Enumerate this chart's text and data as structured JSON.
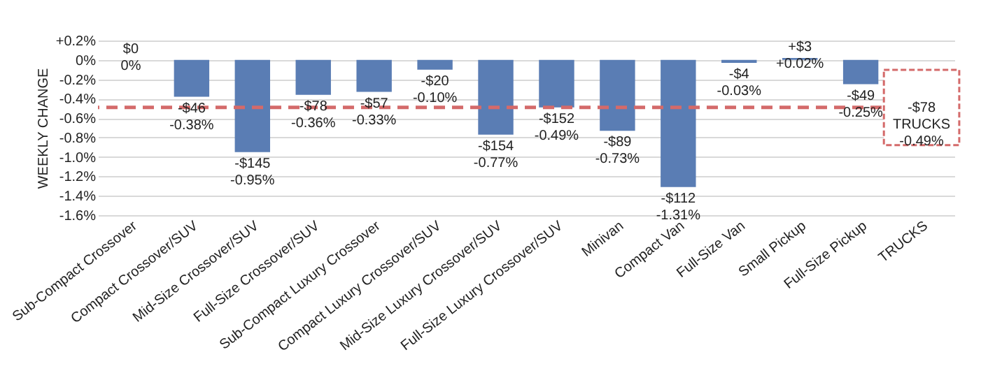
{
  "chart_data": {
    "type": "bar",
    "ylabel": "WEEKLY CHANGE",
    "categories": [
      "Sub-Compact Crossover",
      "Compact Crossover/SUV",
      "Mid-Size Crossover/SUV",
      "Full-Size Crossover/SUV",
      "Sub-Compact Luxury Crossover",
      "Compact Luxury Crossover/SUV",
      "Mid-Size Luxury Crossover/SUV",
      "Full-Size Luxury Crossover/SUV",
      "Minivan",
      "Compact Van",
      "Full-Size Van",
      "Small Pickup",
      "Full-Size Pickup",
      "TRUCKS"
    ],
    "values": [
      0,
      -0.38,
      -0.95,
      -0.36,
      -0.33,
      -0.1,
      -0.77,
      -0.49,
      -0.73,
      -1.31,
      -0.03,
      0.02,
      -0.25,
      null
    ],
    "value_labels": [
      "$0\n0%",
      "-$46\n-0.38%",
      "-$145\n-0.95%",
      "-$78\n-0.36%",
      "-$57\n-0.33%",
      "-$20\n-0.10%",
      "-$154\n-0.77%",
      "-$152\n-0.49%",
      "-$89\n-0.73%",
      "-$112\n-1.31%",
      "-$4\n-0.03%",
      "+$3\n+0.02%",
      "-$49\n-0.25%",
      null
    ],
    "color": "#5a7db4",
    "ylim": [
      -1.6,
      0.2
    ],
    "yticks": [
      {
        "value": 0.2,
        "label": "+0.2%"
      },
      {
        "value": 0,
        "label": "0%"
      },
      {
        "value": -0.2,
        "label": "-0.2%"
      },
      {
        "value": -0.4,
        "label": "-0.4%"
      },
      {
        "value": -0.6,
        "label": "-0.6%"
      },
      {
        "value": -0.8,
        "label": "-0.8%"
      },
      {
        "value": -1.0,
        "label": "-1.0%"
      },
      {
        "value": -1.2,
        "label": "-1.2%"
      },
      {
        "value": -1.4,
        "label": "-1.4%"
      },
      {
        "value": -1.6,
        "label": "-1.6%"
      }
    ],
    "grid": "y",
    "ref_lines": [
      {
        "axis": "y",
        "value": -0.49,
        "label": "-$78\nTRUCKS\n-0.49%",
        "color": "#d46a6a",
        "line_style": "dashed"
      }
    ]
  }
}
